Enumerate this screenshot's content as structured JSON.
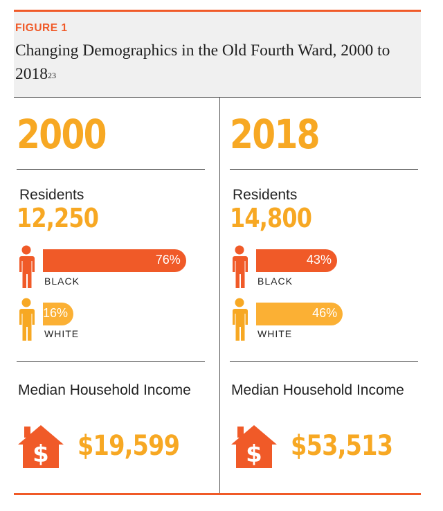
{
  "figure_label": "FIGURE 1",
  "title": "Changing Demographics in the Old Fourth Ward, 2000 to 2018",
  "title_footnote": "23",
  "labels": {
    "residents": "Residents",
    "black": "BLACK",
    "white": "WHITE",
    "median_income": "Median Household Income",
    "currency_symbol": "$"
  },
  "colors": {
    "accent_orange": "#f05a28",
    "accent_yellow": "#f7a823",
    "white_bar": "#fbb034",
    "header_bg": "#f0f0f0"
  },
  "icons": [
    "person-icon",
    "house-dollar-icon"
  ],
  "columns": [
    {
      "year": "2000",
      "residents": "12,250",
      "black_pct_label": "76%",
      "white_pct_label": "16%",
      "median_income": "$19,599"
    },
    {
      "year": "2018",
      "residents": "14,800",
      "black_pct_label": "43%",
      "white_pct_label": "46%",
      "median_income": "$53,513"
    }
  ],
  "chart_data": {
    "type": "bar",
    "categories": [
      "2000",
      "2018"
    ],
    "series": [
      {
        "name": "BLACK",
        "values": [
          76,
          43
        ]
      },
      {
        "name": "WHITE",
        "values": [
          16,
          46
        ]
      }
    ],
    "residents": [
      12250,
      14800
    ],
    "median_household_income": [
      19599,
      53513
    ],
    "unit": "%",
    "ylim": [
      0,
      100
    ],
    "orientation": "horizontal",
    "grid": false
  }
}
